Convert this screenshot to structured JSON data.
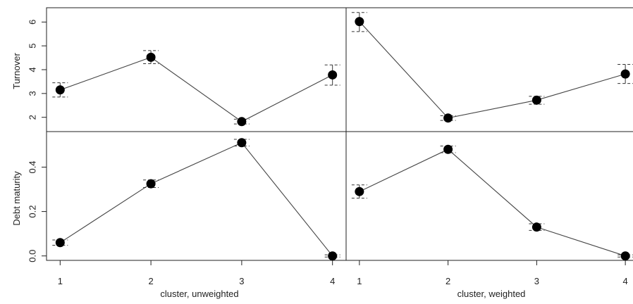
{
  "chart_data": [
    {
      "type": "line",
      "panel": "top-left",
      "xlabel": "",
      "ylabel": "Turnover",
      "x": [
        1,
        2,
        3,
        4
      ],
      "values": [
        3.15,
        4.52,
        1.82,
        3.78
      ],
      "lower": [
        2.85,
        4.25,
        1.72,
        3.35
      ],
      "upper": [
        3.45,
        4.8,
        1.92,
        4.2
      ],
      "xlim": [
        0.85,
        4.15
      ],
      "ylim": [
        1.4,
        6.6
      ],
      "yticks": [
        "2",
        "3",
        "4",
        "5",
        "6"
      ]
    },
    {
      "type": "line",
      "panel": "top-right",
      "xlabel": "",
      "ylabel": "",
      "x": [
        1,
        2,
        3,
        4
      ],
      "values": [
        6.02,
        1.97,
        2.72,
        3.82
      ],
      "lower": [
        5.6,
        1.87,
        2.55,
        3.42
      ],
      "upper": [
        6.4,
        2.07,
        2.88,
        4.22
      ],
      "xlim": [
        0.85,
        4.15
      ],
      "ylim": [
        1.4,
        6.6
      ]
    },
    {
      "type": "line",
      "panel": "bottom-left",
      "xlabel": "cluster, unweighted",
      "ylabel": "Debt  maturity",
      "x": [
        1,
        2,
        3,
        4
      ],
      "values": [
        0.06,
        0.325,
        0.51,
        0.0
      ],
      "lower": [
        0.048,
        0.308,
        0.495,
        -0.005
      ],
      "upper": [
        0.072,
        0.342,
        0.525,
        0.005
      ],
      "xlim": [
        0.85,
        4.15
      ],
      "ylim": [
        -0.02,
        0.56
      ],
      "xticks": [
        "1",
        "2",
        "3",
        "4"
      ],
      "yticks": [
        "0.0",
        "0.2",
        "0.4"
      ]
    },
    {
      "type": "line",
      "panel": "bottom-right",
      "xlabel": "cluster, weighted",
      "ylabel": "",
      "x": [
        1,
        2,
        3,
        4
      ],
      "values": [
        0.29,
        0.48,
        0.13,
        0.0
      ],
      "lower": [
        0.26,
        0.465,
        0.115,
        -0.005
      ],
      "upper": [
        0.32,
        0.495,
        0.145,
        0.005
      ],
      "xlim": [
        0.85,
        4.15
      ],
      "ylim": [
        -0.02,
        0.56
      ],
      "xticks": [
        "1",
        "2",
        "3",
        "4"
      ]
    }
  ]
}
